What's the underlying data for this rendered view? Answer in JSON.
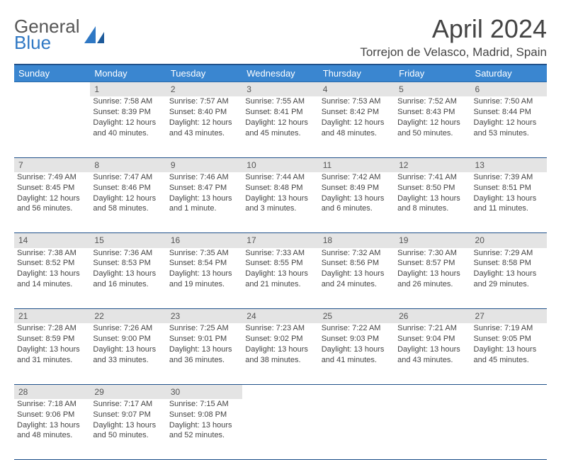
{
  "logo": {
    "line1": "General",
    "line2": "Blue"
  },
  "title": "April 2024",
  "location": "Torrejon de Velasco, Madrid, Spain",
  "colors": {
    "header_bg": "#3a86d0",
    "header_border_top": "#20518a",
    "daynum_bg": "#e4e4e4",
    "text": "#444444",
    "logo_blue": "#2f78c4"
  },
  "weekdays": [
    "Sunday",
    "Monday",
    "Tuesday",
    "Wednesday",
    "Thursday",
    "Friday",
    "Saturday"
  ],
  "weeks": [
    {
      "nums": [
        "",
        "1",
        "2",
        "3",
        "4",
        "5",
        "6"
      ],
      "cells": [
        "",
        "Sunrise: 7:58 AM\nSunset: 8:39 PM\nDaylight: 12 hours and 40 minutes.",
        "Sunrise: 7:57 AM\nSunset: 8:40 PM\nDaylight: 12 hours and 43 minutes.",
        "Sunrise: 7:55 AM\nSunset: 8:41 PM\nDaylight: 12 hours and 45 minutes.",
        "Sunrise: 7:53 AM\nSunset: 8:42 PM\nDaylight: 12 hours and 48 minutes.",
        "Sunrise: 7:52 AM\nSunset: 8:43 PM\nDaylight: 12 hours and 50 minutes.",
        "Sunrise: 7:50 AM\nSunset: 8:44 PM\nDaylight: 12 hours and 53 minutes."
      ]
    },
    {
      "nums": [
        "7",
        "8",
        "9",
        "10",
        "11",
        "12",
        "13"
      ],
      "cells": [
        "Sunrise: 7:49 AM\nSunset: 8:45 PM\nDaylight: 12 hours and 56 minutes.",
        "Sunrise: 7:47 AM\nSunset: 8:46 PM\nDaylight: 12 hours and 58 minutes.",
        "Sunrise: 7:46 AM\nSunset: 8:47 PM\nDaylight: 13 hours and 1 minute.",
        "Sunrise: 7:44 AM\nSunset: 8:48 PM\nDaylight: 13 hours and 3 minutes.",
        "Sunrise: 7:42 AM\nSunset: 8:49 PM\nDaylight: 13 hours and 6 minutes.",
        "Sunrise: 7:41 AM\nSunset: 8:50 PM\nDaylight: 13 hours and 8 minutes.",
        "Sunrise: 7:39 AM\nSunset: 8:51 PM\nDaylight: 13 hours and 11 minutes."
      ]
    },
    {
      "nums": [
        "14",
        "15",
        "16",
        "17",
        "18",
        "19",
        "20"
      ],
      "cells": [
        "Sunrise: 7:38 AM\nSunset: 8:52 PM\nDaylight: 13 hours and 14 minutes.",
        "Sunrise: 7:36 AM\nSunset: 8:53 PM\nDaylight: 13 hours and 16 minutes.",
        "Sunrise: 7:35 AM\nSunset: 8:54 PM\nDaylight: 13 hours and 19 minutes.",
        "Sunrise: 7:33 AM\nSunset: 8:55 PM\nDaylight: 13 hours and 21 minutes.",
        "Sunrise: 7:32 AM\nSunset: 8:56 PM\nDaylight: 13 hours and 24 minutes.",
        "Sunrise: 7:30 AM\nSunset: 8:57 PM\nDaylight: 13 hours and 26 minutes.",
        "Sunrise: 7:29 AM\nSunset: 8:58 PM\nDaylight: 13 hours and 29 minutes."
      ]
    },
    {
      "nums": [
        "21",
        "22",
        "23",
        "24",
        "25",
        "26",
        "27"
      ],
      "cells": [
        "Sunrise: 7:28 AM\nSunset: 8:59 PM\nDaylight: 13 hours and 31 minutes.",
        "Sunrise: 7:26 AM\nSunset: 9:00 PM\nDaylight: 13 hours and 33 minutes.",
        "Sunrise: 7:25 AM\nSunset: 9:01 PM\nDaylight: 13 hours and 36 minutes.",
        "Sunrise: 7:23 AM\nSunset: 9:02 PM\nDaylight: 13 hours and 38 minutes.",
        "Sunrise: 7:22 AM\nSunset: 9:03 PM\nDaylight: 13 hours and 41 minutes.",
        "Sunrise: 7:21 AM\nSunset: 9:04 PM\nDaylight: 13 hours and 43 minutes.",
        "Sunrise: 7:19 AM\nSunset: 9:05 PM\nDaylight: 13 hours and 45 minutes."
      ]
    },
    {
      "nums": [
        "28",
        "29",
        "30",
        "",
        "",
        "",
        ""
      ],
      "cells": [
        "Sunrise: 7:18 AM\nSunset: 9:06 PM\nDaylight: 13 hours and 48 minutes.",
        "Sunrise: 7:17 AM\nSunset: 9:07 PM\nDaylight: 13 hours and 50 minutes.",
        "Sunrise: 7:15 AM\nSunset: 9:08 PM\nDaylight: 13 hours and 52 minutes.",
        "",
        "",
        "",
        ""
      ]
    }
  ]
}
